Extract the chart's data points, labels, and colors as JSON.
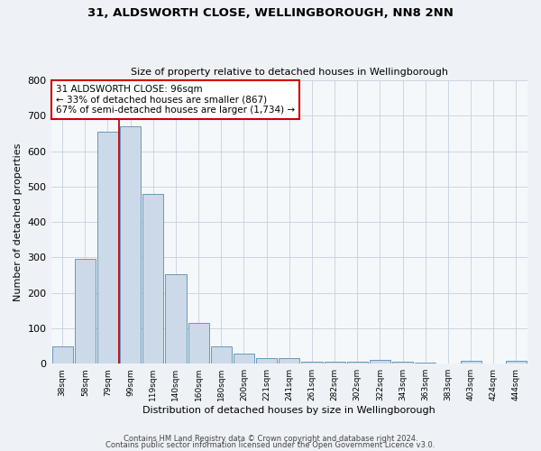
{
  "title": "31, ALDSWORTH CLOSE, WELLINGBOROUGH, NN8 2NN",
  "subtitle": "Size of property relative to detached houses in Wellingborough",
  "xlabel": "Distribution of detached houses by size in Wellingborough",
  "ylabel": "Number of detached properties",
  "bar_labels": [
    "38sqm",
    "58sqm",
    "79sqm",
    "99sqm",
    "119sqm",
    "140sqm",
    "160sqm",
    "180sqm",
    "200sqm",
    "221sqm",
    "241sqm",
    "261sqm",
    "282sqm",
    "302sqm",
    "322sqm",
    "343sqm",
    "363sqm",
    "383sqm",
    "403sqm",
    "424sqm",
    "444sqm"
  ],
  "bar_heights": [
    50,
    295,
    655,
    670,
    480,
    253,
    115,
    50,
    28,
    17,
    17,
    5,
    6,
    6,
    10,
    5,
    4,
    0,
    8,
    0,
    7
  ],
  "bar_color": "#ccd9e8",
  "bar_edge_color": "#6699bb",
  "vline_color": "#cc0000",
  "annotation_text": "31 ALDSWORTH CLOSE: 96sqm\n← 33% of detached houses are smaller (867)\n67% of semi-detached houses are larger (1,734) →",
  "annotation_box_edge": "#cc0000",
  "annotation_box_face": "#ffffff",
  "ylim": [
    0,
    800
  ],
  "yticks": [
    0,
    100,
    200,
    300,
    400,
    500,
    600,
    700,
    800
  ],
  "footer1": "Contains HM Land Registry data © Crown copyright and database right 2024.",
  "footer2": "Contains public sector information licensed under the Open Government Licence v3.0.",
  "bg_color": "#eef2f7",
  "plot_bg_color": "#f5f8fb",
  "grid_color": "#c5d0dc"
}
